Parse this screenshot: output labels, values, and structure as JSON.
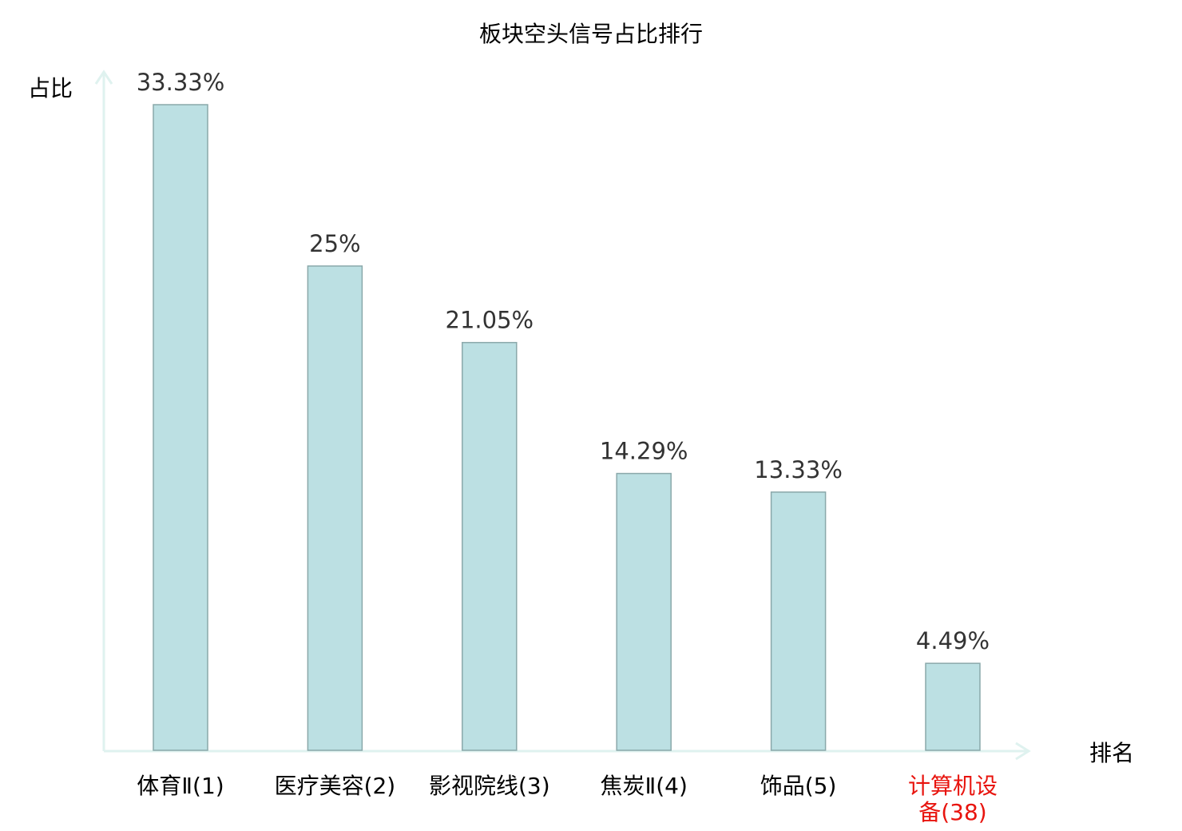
{
  "chart_data": {
    "type": "bar",
    "title": "板块空头信号占比排行",
    "xlabel": "排名",
    "ylabel": "占比",
    "categories": [
      [
        "体育Ⅱ(1)"
      ],
      [
        "医疗美容(2)"
      ],
      [
        "影视院线(3)"
      ],
      [
        "焦炭Ⅱ(4)"
      ],
      [
        "饰品(5)"
      ],
      [
        "计算机设",
        "备(38)"
      ]
    ],
    "values": [
      33.33,
      25,
      21.05,
      14.29,
      13.33,
      4.49
    ],
    "value_labels": [
      "33.33%",
      "25%",
      "21.05%",
      "14.29%",
      "13.33%",
      "4.49%"
    ],
    "highlight_index": 5,
    "ylim": [
      0,
      33.33
    ],
    "grid": false,
    "colors": {
      "bar_fill": "#bce0e3",
      "bar_stroke": "#8aa8aa",
      "axis": "#dff2ef",
      "label": "#000000",
      "value_label": "#333333",
      "highlight": "#e8140e"
    }
  }
}
